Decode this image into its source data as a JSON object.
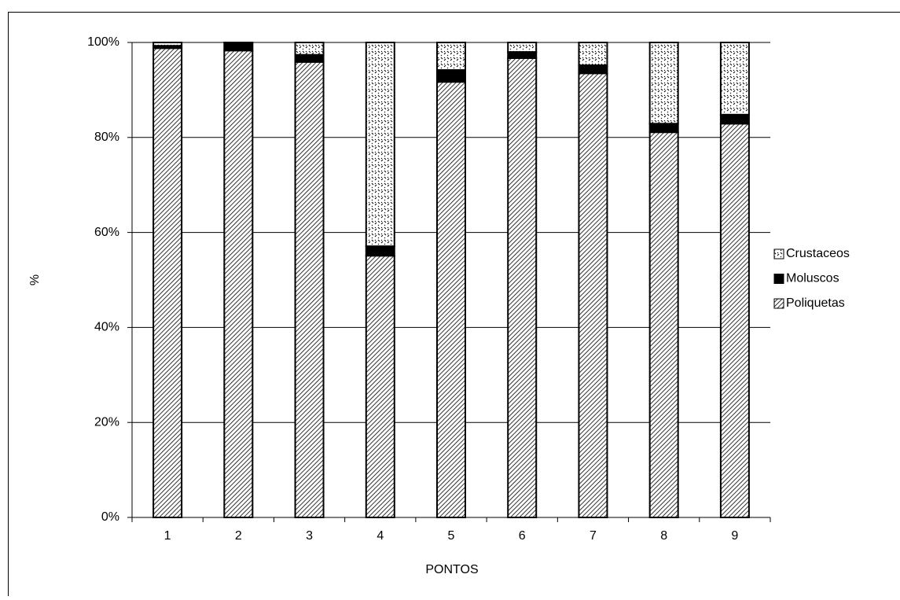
{
  "chart_data": {
    "type": "bar",
    "stacked": true,
    "x_label": "PONTOS",
    "y_label": "%",
    "categories": [
      "1",
      "2",
      "3",
      "4",
      "5",
      "6",
      "7",
      "8",
      "9"
    ],
    "series": [
      {
        "name": "Poliquetas",
        "color": "#000000",
        "pattern": "diagonal",
        "values": [
          98.8,
          98.3,
          95.9,
          55.1,
          91.7,
          96.7,
          93.5,
          81.1,
          82.9
        ]
      },
      {
        "name": "Moluscos",
        "color": "#000000",
        "pattern": "solid",
        "values": [
          0.5,
          1.7,
          1.5,
          2.0,
          2.5,
          1.3,
          1.7,
          1.8,
          1.9
        ]
      },
      {
        "name": "Crustaceos",
        "color": "#000000",
        "pattern": "dots",
        "values": [
          0.7,
          0.0,
          2.6,
          42.9,
          5.8,
          2.0,
          4.8,
          17.1,
          15.2
        ]
      }
    ],
    "ylim": [
      0,
      100
    ],
    "yticks": [
      {
        "value": 0,
        "label": "0%"
      },
      {
        "value": 20,
        "label": "20%"
      },
      {
        "value": 40,
        "label": "40%"
      },
      {
        "value": 60,
        "label": "60%"
      },
      {
        "value": 80,
        "label": "80%"
      },
      {
        "value": 100,
        "label": "100%"
      }
    ],
    "grid": true,
    "legend": "right"
  }
}
